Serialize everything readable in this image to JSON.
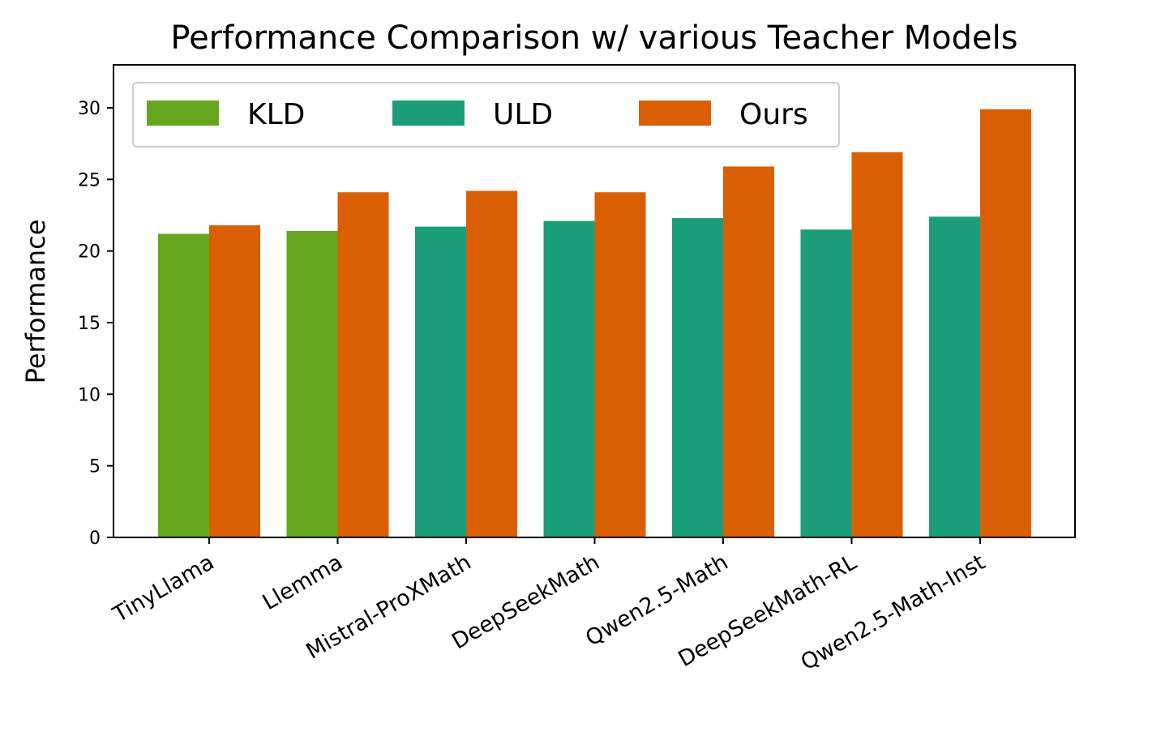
{
  "chart_data": {
    "type": "bar",
    "title": "Performance Comparison w/ various Teacher Models",
    "xlabel": "",
    "ylabel": "Performance",
    "ylim": [
      0,
      33
    ],
    "yticks": [
      0,
      5,
      10,
      15,
      20,
      25,
      30
    ],
    "categories": [
      "TinyLlama",
      "Llemma",
      "Mistral-ProXMath",
      "DeepSeekMath",
      "Qwen2.5-Math",
      "DeepSeekMath-RL",
      "Qwen2.5-Math-Inst"
    ],
    "series": [
      {
        "name": "KLD",
        "color": "#66a61e",
        "values": [
          21.2,
          21.4,
          null,
          null,
          null,
          null,
          null
        ]
      },
      {
        "name": "ULD",
        "color": "#1b9e77",
        "values": [
          null,
          null,
          21.7,
          22.1,
          22.3,
          21.5,
          22.4
        ]
      },
      {
        "name": "Ours",
        "color": "#d95f02",
        "values": [
          21.8,
          24.1,
          24.2,
          24.1,
          25.9,
          26.9,
          29.9
        ]
      }
    ],
    "grid": false,
    "legend": {
      "position": "top-left",
      "entries": [
        "KLD",
        "ULD",
        "Ours"
      ]
    }
  }
}
